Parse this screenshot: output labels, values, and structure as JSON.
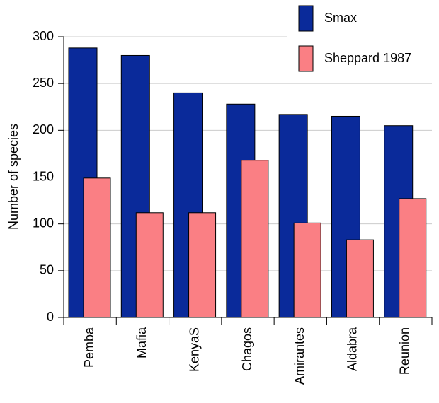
{
  "chart_data": {
    "type": "bar",
    "categories": [
      "Pemba",
      "Mafia",
      "KenyaS",
      "Chagos",
      "Amirantes",
      "Aldabra",
      "Reunion"
    ],
    "series": [
      {
        "name": "Smax",
        "color": "#0a2a9a",
        "values": [
          288,
          280,
          240,
          228,
          217,
          215,
          205
        ]
      },
      {
        "name": "Sheppard 1987",
        "color": "#fa7f84",
        "values": [
          149,
          112,
          112,
          168,
          101,
          83,
          127
        ]
      }
    ],
    "ylabel": "Number of species",
    "ylim": [
      0,
      300
    ],
    "yticks": [
      0,
      50,
      100,
      150,
      200,
      250,
      300
    ],
    "grid": true
  }
}
